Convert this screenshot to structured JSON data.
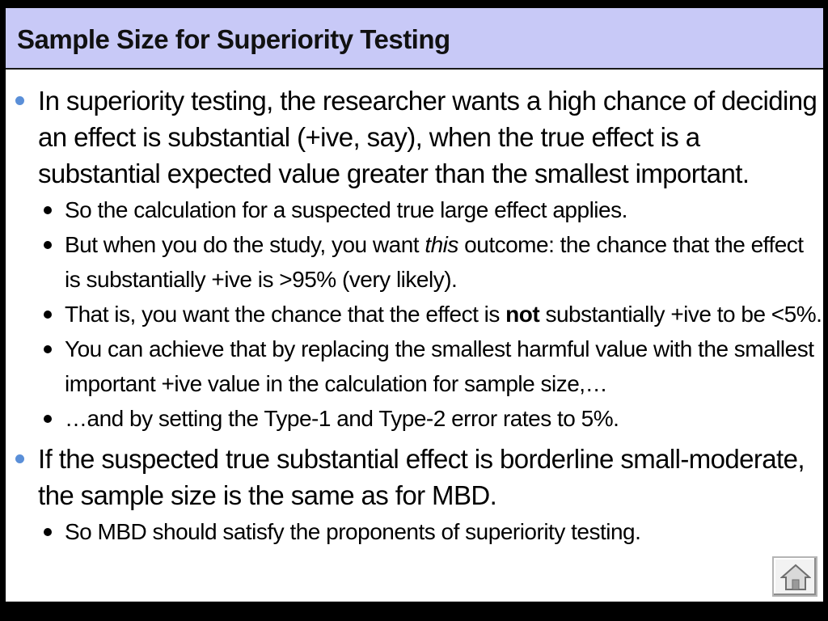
{
  "title": "Sample Size for Superiority Testing",
  "bullets": [
    {
      "text": "In superiority testing, the researcher wants a high chance of deciding an effect is substantial (+ive, say), when the true effect is a substantial expected value greater than the smallest important.",
      "sub": [
        {
          "text": "So the calculation for a suspected true large effect applies."
        },
        {
          "pre": "But when you do the study, you want ",
          "em": "this",
          "post": " outcome: the chance that the effect is substantially +ive is >95% (very likely)."
        },
        {
          "pre": "That is, you want the chance that the effect is ",
          "strong": "not",
          "post": " substantially +ive to be <5%."
        },
        {
          "text": "You can achieve that by replacing the smallest harmful value with the smallest important +ive value in the calculation for sample size,…"
        },
        {
          "text": "…and by setting the Type-1 and Type-2 error rates to 5%."
        }
      ]
    },
    {
      "text": "If the suspected true substantial effect is borderline small-moderate, the sample size is the same as for MBD.",
      "sub": [
        {
          "text": "So MBD should satisfy the proponents of superiority testing."
        }
      ]
    }
  ],
  "icons": {
    "home": "home-icon"
  },
  "colors": {
    "title_bar": "#c8c9f7",
    "bullet_level1": "#5a8fd8",
    "background": "#ffffff"
  }
}
